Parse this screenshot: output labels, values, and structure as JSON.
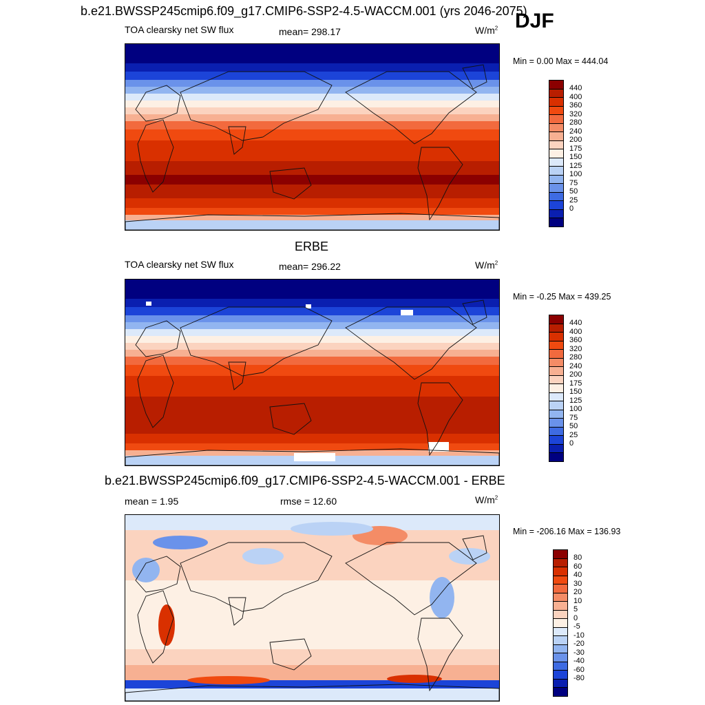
{
  "season": "DJF",
  "panels": [
    {
      "title": "b.e21.BWSSP245cmip6.f09_g17.CMIP6-SSP2-4.5-WACCM.001 (yrs 2046-2075)",
      "left_label": "TOA clearsky net SW flux",
      "center_label": "mean= 298.17",
      "units": "W/m",
      "units_sup": "2",
      "minmax": "Min =   0.00 Max = 444.04",
      "scale": "absolute"
    },
    {
      "title": "ERBE",
      "left_label": "TOA clearsky net SW flux",
      "center_label": "mean= 296.22",
      "units": "W/m",
      "units_sup": "2",
      "minmax": "Min =  -0.25 Max = 439.25",
      "scale": "absolute"
    },
    {
      "title": "b.e21.BWSSP245cmip6.f09_g17.CMIP6-SSP2-4.5-WACCM.001 - ERBE",
      "left_label": "mean =   1.95",
      "center_label": "rmse =  12.60",
      "units": "W/m",
      "units_sup": "2",
      "minmax": "Min = -206.16 Max = 136.93",
      "scale": "difference"
    }
  ],
  "colorbars": {
    "absolute": {
      "labels": [
        "440",
        "400",
        "360",
        "320",
        "280",
        "240",
        "200",
        "175",
        "150",
        "125",
        "100",
        "75",
        "50",
        "25",
        "0"
      ],
      "colors": [
        "#8b0000",
        "#b81e00",
        "#d93000",
        "#f04a10",
        "#f26a3e",
        "#f48c66",
        "#f7b092",
        "#fbd3bf",
        "#fdf0e4",
        "#dce9fa",
        "#bad2f5",
        "#92b5f0",
        "#6a92ea",
        "#3e6be3",
        "#1c44d8",
        "#0a1fb0",
        "#000080"
      ]
    },
    "difference": {
      "labels": [
        "80",
        "60",
        "40",
        "30",
        "20",
        "10",
        "5",
        "0",
        "-5",
        "-10",
        "-20",
        "-30",
        "-40",
        "-60",
        "-80"
      ],
      "colors": [
        "#8b0000",
        "#b81e00",
        "#d93000",
        "#f04a10",
        "#f26a3e",
        "#f48c66",
        "#f7b092",
        "#fbd3bf",
        "#fdf0e4",
        "#dce9fa",
        "#bad2f5",
        "#92b5f0",
        "#6a92ea",
        "#3e6be3",
        "#1c44d8",
        "#0a1fb0",
        "#000080"
      ]
    }
  }
}
